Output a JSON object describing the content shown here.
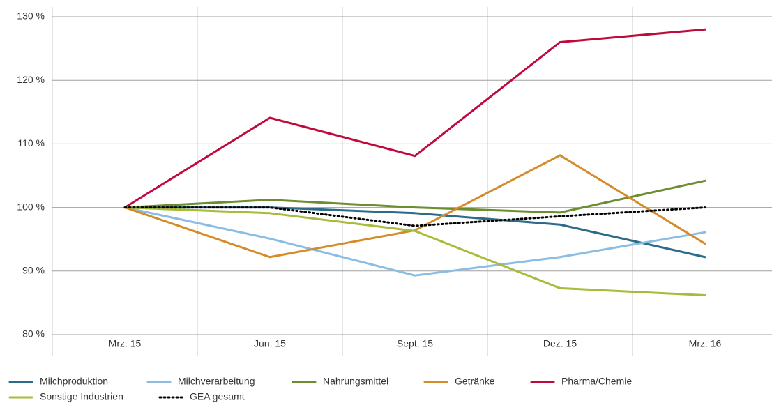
{
  "chart_data": {
    "type": "line",
    "categories": [
      "Mrz. 15",
      "Jun. 15",
      "Sept. 15",
      "Dez. 15",
      "Mrz. 16"
    ],
    "series": [
      {
        "name": "Milchproduktion",
        "color": "#2e6b8a",
        "values": [
          100,
          100,
          99.1,
          97.3,
          92.2
        ]
      },
      {
        "name": "Milchverarbeitung",
        "color": "#8bbde3",
        "values": [
          100,
          95.1,
          89.3,
          92.2,
          96.1
        ]
      },
      {
        "name": "Nahrungsmittel",
        "color": "#6b8e2f",
        "values": [
          100,
          101.2,
          100,
          99.2,
          104.2
        ]
      },
      {
        "name": "Getränke",
        "color": "#d68b2a",
        "values": [
          100,
          92.2,
          96.4,
          108.2,
          94.3
        ]
      },
      {
        "name": "Pharma/Chemie",
        "color": "#c0093c",
        "values": [
          100,
          114.1,
          108.1,
          126,
          128
        ]
      },
      {
        "name": "Sonstige Industrien",
        "color": "#a8bb3a",
        "values": [
          100,
          99.1,
          96.3,
          87.3,
          86.2
        ]
      },
      {
        "name": "GEA gesamt",
        "color": "#000000",
        "dashed": true,
        "values": [
          100,
          100,
          97.1,
          98.6,
          100
        ]
      }
    ],
    "ylim": [
      80,
      130
    ],
    "yticks": [
      {
        "value": 80,
        "label": "80 %"
      },
      {
        "value": 90,
        "label": "90 %"
      },
      {
        "value": 100,
        "label": "100 %"
      },
      {
        "value": 110,
        "label": "110 %"
      },
      {
        "value": 120,
        "label": "120 %"
      },
      {
        "value": 130,
        "label": "130 %"
      }
    ],
    "grid": true,
    "legend": "bottom"
  }
}
